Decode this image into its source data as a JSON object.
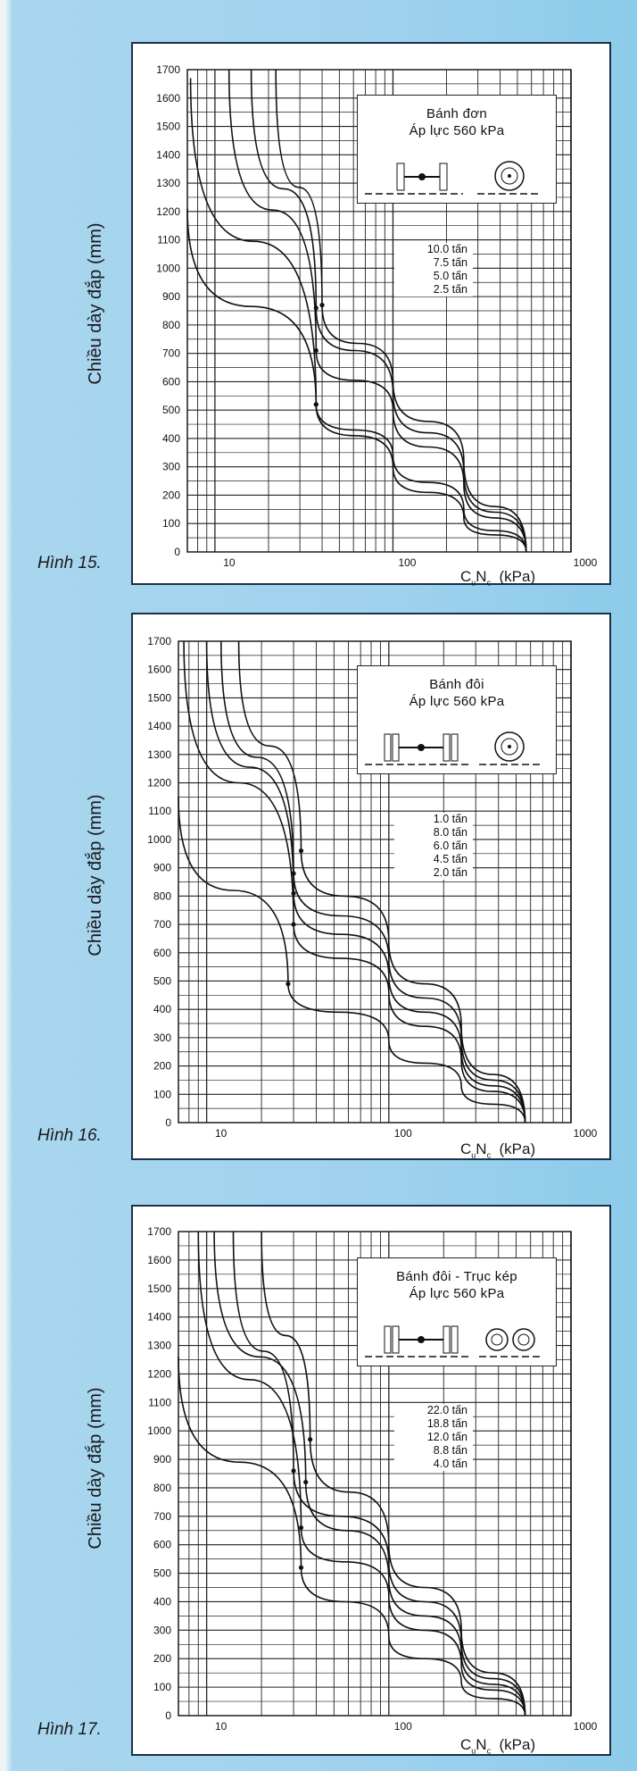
{
  "chart_data": [
    {
      "type": "line",
      "figure_label": "Hình 15.",
      "title": "Bánh đơn",
      "subtitle": "Áp lực 560 kPa",
      "xlabel": "CuNc  (kPa)",
      "ylabel": "Chiều dày đắp (mm)",
      "xscale": "log",
      "xlim": [
        7,
        1000
      ],
      "ylim": [
        0,
        1700
      ],
      "x_ticks": [
        "10",
        "100",
        "1000"
      ],
      "y_ticks": [
        "0",
        "100",
        "200",
        "300",
        "400",
        "500",
        "600",
        "700",
        "800",
        "900",
        "1000",
        "1100",
        "1200",
        "1300",
        "1400",
        "1500",
        "1600",
        "1700"
      ],
      "grid": true,
      "series": [
        {
          "name": "10.0 tấn",
          "x": [
            22,
            40,
            100,
            250,
            560
          ],
          "y": [
            1700,
            870,
            600,
            320,
            0
          ]
        },
        {
          "name": "7.5 tấn",
          "x": [
            16,
            37,
            100,
            250,
            560
          ],
          "y": [
            1700,
            860,
            560,
            280,
            0
          ]
        },
        {
          "name": "5.0 tấn",
          "x": [
            12,
            37,
            100,
            250,
            560
          ],
          "y": [
            1700,
            710,
            500,
            240,
            0
          ]
        },
        {
          "name": "2.5 tấn",
          "x": [
            7.3,
            37,
            100,
            250,
            560
          ],
          "y": [
            1670,
            520,
            340,
            150,
            0
          ]
        },
        {
          "name": "",
          "x": [
            7,
            37,
            100,
            250,
            560
          ],
          "y": [
            1210,
            520,
            300,
            120,
            0
          ]
        }
      ]
    },
    {
      "type": "line",
      "figure_label": "Hình 16.",
      "title": "Bánh đôi",
      "subtitle": "Áp lực 560 kPa",
      "xlabel": "CuNc  (kPa)",
      "ylabel": "Chiều dày đắp (mm)",
      "xscale": "log",
      "xlim": [
        7,
        1000
      ],
      "ylim": [
        0,
        1700
      ],
      "x_ticks": [
        "10",
        "100",
        "1000"
      ],
      "y_ticks": [
        "0",
        "100",
        "200",
        "300",
        "400",
        "500",
        "600",
        "700",
        "800",
        "900",
        "1000",
        "1100",
        "1200",
        "1300",
        "1400",
        "1500",
        "1600",
        "1700"
      ],
      "grid": true,
      "series": [
        {
          "name": "1.0 tấn",
          "x": [
            15,
            33,
            100,
            250,
            560
          ],
          "y": [
            1700,
            960,
            640,
            340,
            0
          ]
        },
        {
          "name": "8.0 tấn",
          "x": [
            12,
            30,
            100,
            250,
            560
          ],
          "y": [
            1700,
            880,
            580,
            300,
            0
          ]
        },
        {
          "name": "6.0 tấn",
          "x": [
            10,
            30,
            100,
            250,
            560
          ],
          "y": [
            1700,
            810,
            520,
            260,
            0
          ]
        },
        {
          "name": "4.5 tấn",
          "x": [
            7.5,
            30,
            100,
            250,
            560
          ],
          "y": [
            1700,
            700,
            460,
            220,
            0
          ]
        },
        {
          "name": "2.0 tấn",
          "x": [
            7,
            28,
            100,
            250,
            560
          ],
          "y": [
            1150,
            490,
            290,
            130,
            0
          ]
        }
      ]
    },
    {
      "type": "line",
      "figure_label": "Hình 17.",
      "title": "Bánh đôi - Trục kép",
      "subtitle": "Áp lực 560 kPa",
      "xlabel": "CuNc  (kPa)",
      "ylabel": "Chiều dày đắp (mm)",
      "xscale": "log",
      "xlim": [
        7,
        1000
      ],
      "ylim": [
        0,
        1700
      ],
      "x_ticks": [
        "10",
        "100",
        "1000"
      ],
      "y_ticks": [
        "0",
        "100",
        "200",
        "300",
        "400",
        "500",
        "600",
        "700",
        "800",
        "900",
        "1000",
        "1100",
        "1200",
        "1300",
        "1400",
        "1500",
        "1600",
        "1700"
      ],
      "grid": true,
      "series": [
        {
          "name": "22.0 tấn",
          "x": [
            20,
            37,
            100,
            250,
            560
          ],
          "y": [
            1700,
            970,
            600,
            300,
            0
          ]
        },
        {
          "name": "18.8 tấn",
          "x": [
            14,
            30,
            100,
            250,
            560
          ],
          "y": [
            1700,
            860,
            540,
            260,
            0
          ]
        },
        {
          "name": "12.0 tấn",
          "x": [
            11,
            35,
            100,
            250,
            560
          ],
          "y": [
            1700,
            820,
            480,
            220,
            0
          ]
        },
        {
          "name": "8.8 tấn",
          "x": [
            9,
            33,
            100,
            250,
            560
          ],
          "y": [
            1700,
            660,
            420,
            180,
            0
          ]
        },
        {
          "name": "4.0 tấn",
          "x": [
            7,
            33,
            100,
            250,
            560
          ],
          "y": [
            1260,
            520,
            280,
            120,
            0
          ]
        }
      ]
    }
  ]
}
